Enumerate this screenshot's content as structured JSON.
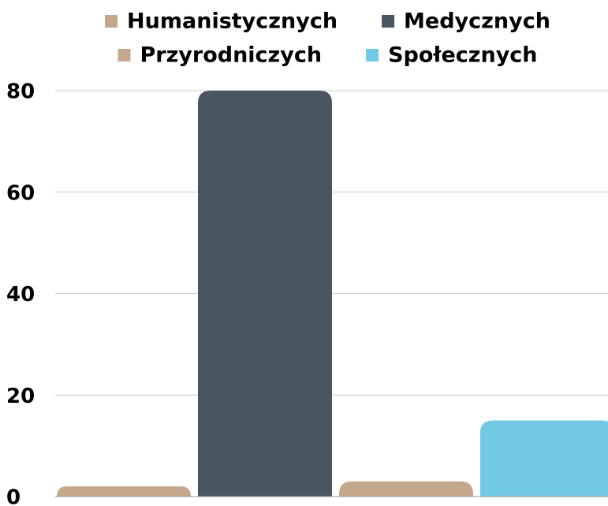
{
  "chart_data": {
    "type": "bar",
    "series": [
      {
        "name": "Humanistycznych",
        "color": "#c5a88b",
        "values": [
          2
        ]
      },
      {
        "name": "Medycznych",
        "color": "#4a5562",
        "values": [
          80
        ]
      },
      {
        "name": "Przyrodniczych",
        "color": "#c5a88b",
        "values": [
          3
        ]
      },
      {
        "name": "Społecznych",
        "color": "#72c9e4",
        "values": [
          15
        ]
      }
    ],
    "ylim": [
      0,
      80
    ],
    "yticks": [
      0,
      20,
      40,
      60,
      80
    ],
    "grid": true
  }
}
